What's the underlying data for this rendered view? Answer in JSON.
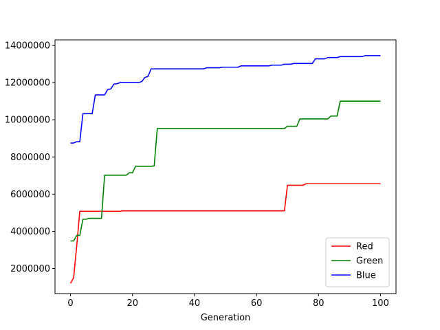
{
  "chart_data": {
    "type": "line",
    "title": "",
    "xlabel": "Generation",
    "ylabel": "",
    "xlim": [
      -5,
      105
    ],
    "ylim": [
      650000,
      14300000
    ],
    "xticks": [
      0,
      20,
      40,
      60,
      80,
      100
    ],
    "yticks": [
      2000000,
      4000000,
      6000000,
      8000000,
      10000000,
      12000000,
      14000000
    ],
    "xtick_labels": [
      "0",
      "20",
      "40",
      "60",
      "80",
      "100"
    ],
    "ytick_labels": [
      "2000000",
      "4000000",
      "6000000",
      "8000000",
      "10000000",
      "12000000",
      "14000000"
    ],
    "grid": false,
    "legend_position": "lower-right",
    "series": [
      {
        "name": "Red",
        "color": "#ff0000",
        "points": [
          [
            0,
            1200000
          ],
          [
            1,
            1500000
          ],
          [
            2,
            3200000
          ],
          [
            3,
            5080000
          ],
          [
            16,
            5080000
          ],
          [
            17,
            5100000
          ],
          [
            69,
            5100000
          ],
          [
            70,
            6480000
          ],
          [
            75,
            6480000
          ],
          [
            76,
            6560000
          ],
          [
            100,
            6560000
          ]
        ]
      },
      {
        "name": "Green",
        "color": "#008000",
        "points": [
          [
            0,
            3480000
          ],
          [
            1,
            3480000
          ],
          [
            2,
            3780000
          ],
          [
            3,
            3780000
          ],
          [
            4,
            4650000
          ],
          [
            5,
            4650000
          ],
          [
            6,
            4700000
          ],
          [
            10,
            4700000
          ],
          [
            11,
            7020000
          ],
          [
            18,
            7020000
          ],
          [
            19,
            7150000
          ],
          [
            20,
            7150000
          ],
          [
            21,
            7500000
          ],
          [
            26,
            7500000
          ],
          [
            27,
            7520000
          ],
          [
            28,
            9530000
          ],
          [
            69,
            9530000
          ],
          [
            70,
            9650000
          ],
          [
            73,
            9650000
          ],
          [
            74,
            10050000
          ],
          [
            83,
            10050000
          ],
          [
            84,
            10200000
          ],
          [
            86,
            10200000
          ],
          [
            87,
            11000000
          ],
          [
            100,
            11000000
          ]
        ]
      },
      {
        "name": "Blue",
        "color": "#0000ff",
        "points": [
          [
            0,
            8750000
          ],
          [
            1,
            8750000
          ],
          [
            2,
            8820000
          ],
          [
            3,
            8820000
          ],
          [
            4,
            10330000
          ],
          [
            7,
            10330000
          ],
          [
            8,
            11340000
          ],
          [
            11,
            11340000
          ],
          [
            12,
            11630000
          ],
          [
            13,
            11660000
          ],
          [
            14,
            11920000
          ],
          [
            15,
            11940000
          ],
          [
            16,
            12000000
          ],
          [
            22,
            12000000
          ],
          [
            23,
            12060000
          ],
          [
            24,
            12280000
          ],
          [
            25,
            12330000
          ],
          [
            26,
            12740000
          ],
          [
            43,
            12740000
          ],
          [
            44,
            12800000
          ],
          [
            48,
            12800000
          ],
          [
            49,
            12830000
          ],
          [
            54,
            12830000
          ],
          [
            55,
            12900000
          ],
          [
            64,
            12900000
          ],
          [
            65,
            12940000
          ],
          [
            68,
            12940000
          ],
          [
            69,
            12990000
          ],
          [
            71,
            12990000
          ],
          [
            72,
            13030000
          ],
          [
            78,
            13030000
          ],
          [
            79,
            13280000
          ],
          [
            82,
            13280000
          ],
          [
            83,
            13350000
          ],
          [
            86,
            13350000
          ],
          [
            87,
            13400000
          ],
          [
            94,
            13400000
          ],
          [
            95,
            13450000
          ],
          [
            100,
            13450000
          ]
        ]
      }
    ]
  }
}
